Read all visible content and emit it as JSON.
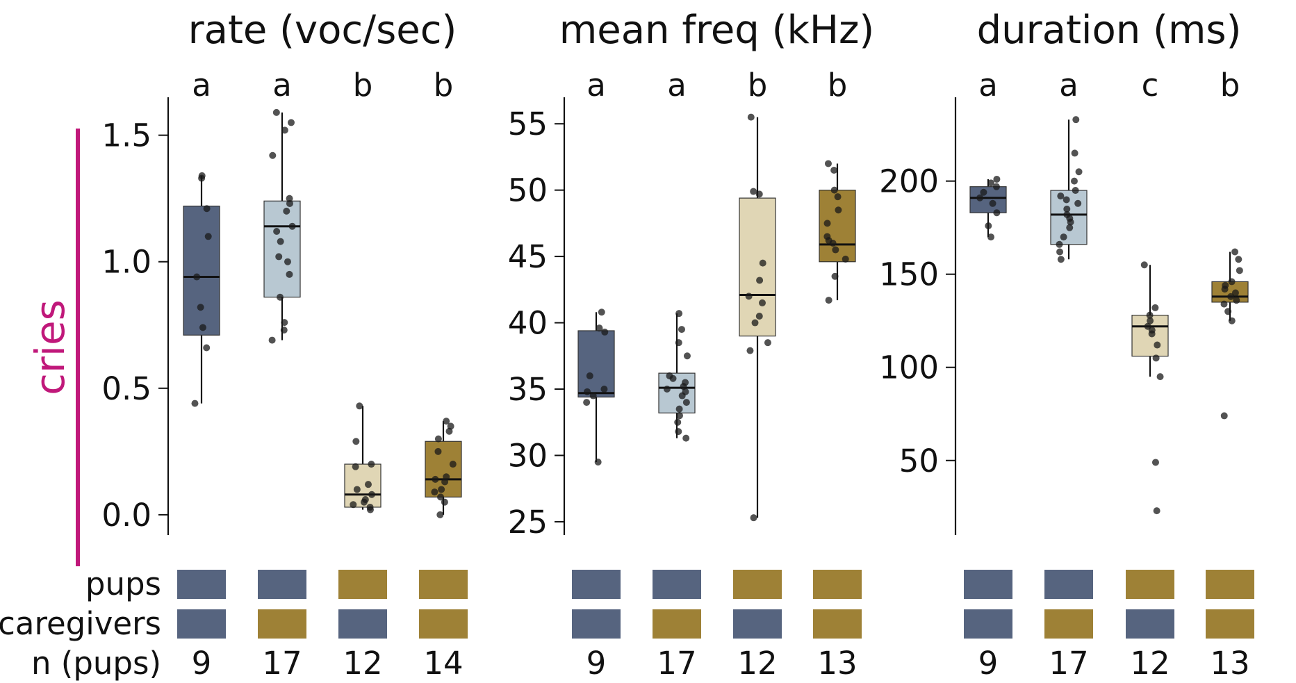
{
  "row_label": "cries",
  "row_label_color": "#c0187a",
  "colors": {
    "dark_blue": "#56647f",
    "light_blue": "#b8c8d2",
    "light_gold": "#e0d6b5",
    "gold": "#9e8136"
  },
  "legend": {
    "pups_label": "pups",
    "caregivers_label": "caregivers",
    "n_label": "n (pups)",
    "pups_colors": [
      "dark_blue",
      "dark_blue",
      "gold",
      "gold"
    ],
    "caregivers_colors": [
      "dark_blue",
      "gold",
      "dark_blue",
      "gold"
    ]
  },
  "chart_data": [
    {
      "type": "box",
      "title": "rate (voc/sec)",
      "ylim": [
        -0.08,
        1.65
      ],
      "yticks": [
        "0.0",
        "0.5",
        "1.0",
        "1.5"
      ],
      "ytick_values": [
        0.0,
        0.5,
        1.0,
        1.5
      ],
      "n": [
        "9",
        "17",
        "12",
        "14"
      ],
      "groups": [
        {
          "box_color": "dark_blue",
          "letter": "a",
          "q1": 0.71,
          "median": 0.94,
          "q3": 1.22,
          "whisker_low": 0.44,
          "whisker_high": 1.34,
          "points": [
            0.44,
            0.66,
            0.74,
            0.82,
            0.94,
            1.1,
            1.21,
            1.33,
            1.34
          ]
        },
        {
          "box_color": "light_blue",
          "letter": "a",
          "q1": 0.86,
          "median": 1.14,
          "q3": 1.24,
          "whisker_low": 0.69,
          "whisker_high": 1.59,
          "points": [
            0.69,
            0.73,
            0.76,
            0.86,
            0.95,
            1.02,
            1.08,
            1.12,
            1.14,
            1.2,
            1.23,
            1.25,
            1.42,
            1.52,
            1.55,
            1.59,
            1.0
          ]
        },
        {
          "box_color": "light_gold",
          "letter": "b",
          "q1": 0.03,
          "median": 0.08,
          "q3": 0.2,
          "whisker_low": 0.02,
          "whisker_high": 0.43,
          "points": [
            0.02,
            0.03,
            0.04,
            0.06,
            0.08,
            0.1,
            0.12,
            0.19,
            0.2,
            0.29,
            0.43,
            0.05
          ]
        },
        {
          "box_color": "gold",
          "letter": "b",
          "q1": 0.07,
          "median": 0.14,
          "q3": 0.29,
          "whisker_low": 0.0,
          "whisker_high": 0.37,
          "points": [
            0.0,
            0.05,
            0.07,
            0.1,
            0.13,
            0.14,
            0.15,
            0.2,
            0.25,
            0.3,
            0.33,
            0.35,
            0.37,
            0.09
          ]
        }
      ]
    },
    {
      "type": "box",
      "title": "mean freq (kHz)",
      "ylim": [
        24,
        57
      ],
      "yticks": [
        "25",
        "30",
        "35",
        "40",
        "45",
        "50",
        "55"
      ],
      "ytick_values": [
        25,
        30,
        35,
        40,
        45,
        50,
        55
      ],
      "n": [
        "9",
        "17",
        "12",
        "13"
      ],
      "groups": [
        {
          "box_color": "dark_blue",
          "letter": "a",
          "q1": 34.4,
          "median": 34.7,
          "q3": 39.4,
          "whisker_low": 29.5,
          "whisker_high": 40.8,
          "points": [
            29.5,
            34.0,
            34.5,
            35.0,
            36.0,
            39.3,
            39.6,
            40.8,
            34.8
          ]
        },
        {
          "box_color": "light_blue",
          "letter": "a",
          "q1": 33.2,
          "median": 35.1,
          "q3": 36.2,
          "whisker_low": 31.3,
          "whisker_high": 40.7,
          "points": [
            31.3,
            31.8,
            32.5,
            33.0,
            33.5,
            34.0,
            34.8,
            35.0,
            35.2,
            35.5,
            35.8,
            36.0,
            37.5,
            38.5,
            39.5,
            40.7,
            34.5
          ]
        },
        {
          "box_color": "light_gold",
          "letter": "b",
          "q1": 39.0,
          "median": 42.1,
          "q3": 49.4,
          "whisker_low": 25.3,
          "whisker_high": 55.5,
          "points": [
            25.3,
            37.9,
            38.5,
            40.5,
            41.5,
            43.2,
            44.5,
            49.7,
            49.9,
            55.5,
            42.0,
            40.0
          ]
        },
        {
          "box_color": "gold",
          "letter": "b",
          "q1": 44.6,
          "median": 45.9,
          "q3": 50.0,
          "whisker_low": 41.7,
          "whisker_high": 52.0,
          "points": [
            41.7,
            43.5,
            44.8,
            45.5,
            46.0,
            46.5,
            47.5,
            48.5,
            49.5,
            50.0,
            51.5,
            52.0,
            46.2
          ]
        }
      ]
    },
    {
      "type": "box",
      "title": "duration (ms)",
      "ylim": [
        10,
        245
      ],
      "yticks": [
        "50",
        "100",
        "150",
        "200"
      ],
      "ytick_values": [
        50,
        100,
        150,
        200
      ],
      "n": [
        "9",
        "17",
        "12",
        "13"
      ],
      "groups": [
        {
          "box_color": "dark_blue",
          "letter": "a",
          "q1": 183,
          "median": 191,
          "q3": 197,
          "whisker_low": 170,
          "whisker_high": 201,
          "points": [
            170,
            176,
            183,
            188,
            191,
            194,
            197,
            199,
            201
          ]
        },
        {
          "box_color": "light_blue",
          "letter": "a",
          "q1": 166,
          "median": 182,
          "q3": 195,
          "whisker_low": 158,
          "whisker_high": 233,
          "points": [
            158,
            162,
            166,
            170,
            175,
            180,
            182,
            185,
            188,
            192,
            195,
            200,
            205,
            215,
            233,
            178,
            190
          ]
        },
        {
          "box_color": "light_gold",
          "letter": "c",
          "q1": 106,
          "median": 122,
          "q3": 128,
          "whisker_low": 95,
          "whisker_high": 155,
          "points": [
            23,
            49,
            95,
            105,
            112,
            118,
            122,
            125,
            128,
            132,
            155,
            120
          ]
        },
        {
          "box_color": "gold",
          "letter": "b",
          "q1": 135,
          "median": 138,
          "q3": 146,
          "whisker_low": 125,
          "whisker_high": 162,
          "points": [
            74,
            125,
            130,
            134,
            136,
            138,
            140,
            142,
            144,
            146,
            152,
            158,
            162
          ]
        }
      ]
    }
  ]
}
